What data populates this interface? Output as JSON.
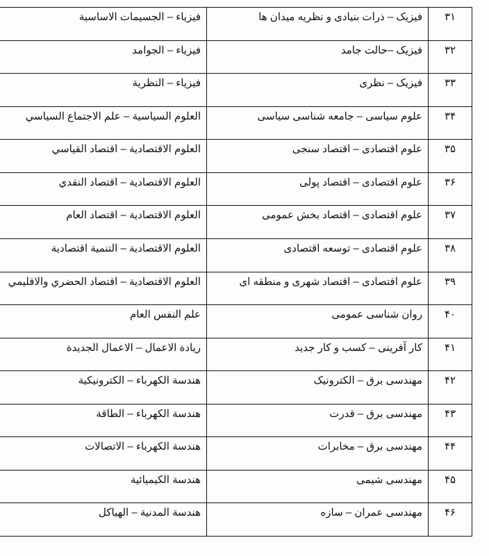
{
  "table": {
    "col_widths": {
      "num": 46,
      "col2": 302,
      "col3": 300
    },
    "font_size": 15,
    "border_color": "#111111",
    "background_color": "#fdfdfb",
    "text_color": "#111111",
    "rows": [
      {
        "n": "۳۱",
        "fa": "فیزیک – ذرات بنیادی و نظریه میدان ها",
        "ar": "فيزياء – الجسيمات الاساسية"
      },
      {
        "n": "۳۲",
        "fa": "فیزیک –حالت جامد",
        "ar": "فيزياء – الجوامد"
      },
      {
        "n": "۳۳",
        "fa": "فیزیک – نظری",
        "ar": "فيزياء – النظرية"
      },
      {
        "n": "۳۴",
        "fa": "علوم سیاسی – جامعه شناسی سیاسی",
        "ar": "العلوم السياسية – علم الاجتماع السياسي"
      },
      {
        "n": "۳۵",
        "fa": "علوم اقتصادی – اقتصاد سنجی",
        "ar": "العلوم الاقتصادية – اقتصاد القياسي"
      },
      {
        "n": "۳۶",
        "fa": "علوم اقتصادی – اقتصاد پولی",
        "ar": "العلوم الاقتصادية – اقتصاد النقدي"
      },
      {
        "n": "۳۷",
        "fa": "علوم اقتصادی – اقتصاد بخش عمومی",
        "ar": "العلوم الاقتصادية – اقتصاد العام"
      },
      {
        "n": "۳۸",
        "fa": "علوم اقتصادی – توسعه اقتصادی",
        "ar": "العلوم الاقتصادية – التنمية اقتصادية"
      },
      {
        "n": "۳۹",
        "fa": "علوم اقتصادی – اقتصاد شهری و منطقه ای",
        "ar": "العلوم الاقتصادية – اقتصاد الحضري والاقليمي"
      },
      {
        "n": "۴۰",
        "fa": "روان شناسی عمومی",
        "ar": "علم النفس العام"
      },
      {
        "n": "۴۱",
        "fa": "کار آفرینی – کسب و کار جدید",
        "ar": "ريادة الاعمال – الاعمال الجديدة"
      },
      {
        "n": "۴۲",
        "fa": "مهندسی برق – الکترونیک",
        "ar": "هندسة الكهرباء – الكترونيكية"
      },
      {
        "n": "۴۳",
        "fa": "مهندسی برق – قدرت",
        "ar": "هندسة الكهرباء – الطاقة"
      },
      {
        "n": "۴۴",
        "fa": "مهندسی برق – مخابرات",
        "ar": "هندسة الكهرباء – الاتصالات"
      },
      {
        "n": "۴۵",
        "fa": "مهندسی شیمی",
        "ar": "هندسة الكيميائية"
      },
      {
        "n": "۴۶",
        "fa": "مهندسی عمران – سازه",
        "ar": "هندسة المدنية – الهياكل"
      }
    ]
  }
}
